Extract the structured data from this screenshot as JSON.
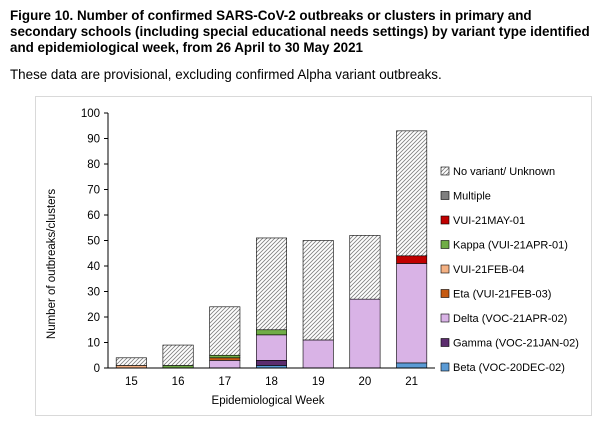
{
  "figure": {
    "title": "Figure 10. Number of confirmed SARS-CoV-2 outbreaks or clusters in primary and secondary schools (including special educational needs settings) by variant type identified and epidemiological week, from 26 April to 30 May 2021",
    "subtitle": "These data are provisional, excluding confirmed Alpha variant outbreaks."
  },
  "chart_data": {
    "type": "bar",
    "stacked": true,
    "title": "",
    "xlabel": "Epidemiological Week",
    "ylabel": "Number of outbreaks/clusters",
    "ylim": [
      0,
      100
    ],
    "yticks": [
      0,
      10,
      20,
      30,
      40,
      50,
      60,
      70,
      80,
      90,
      100
    ],
    "grid": false,
    "legend_position": "right",
    "categories": [
      "15",
      "16",
      "17",
      "18",
      "19",
      "20",
      "21"
    ],
    "series": [
      {
        "name": "Beta (VOC-20DEC-02)",
        "color": "#5b9bd5",
        "pattern": "solid",
        "values": [
          0,
          0,
          0,
          1,
          0,
          0,
          2
        ]
      },
      {
        "name": "Gamma (VOC-21JAN-02)",
        "color": "#5c2d6e",
        "pattern": "solid",
        "values": [
          0,
          0,
          0,
          2,
          0,
          0,
          0
        ]
      },
      {
        "name": "Delta (VOC-21APR-02)",
        "color": "#d9b3e6",
        "pattern": "solid",
        "values": [
          0,
          0,
          3,
          10,
          11,
          27,
          39
        ]
      },
      {
        "name": "Eta (VUI-21FEB-03)",
        "color": "#c55a11",
        "pattern": "solid",
        "values": [
          0,
          0,
          1,
          0,
          0,
          0,
          0
        ]
      },
      {
        "name": "VUI-21FEB-04",
        "color": "#f4b183",
        "pattern": "solid",
        "values": [
          1,
          0,
          0,
          0,
          0,
          0,
          0
        ]
      },
      {
        "name": "Kappa (VUI-21APR-01)",
        "color": "#70ad47",
        "pattern": "solid",
        "values": [
          0,
          1,
          1,
          2,
          0,
          0,
          0
        ]
      },
      {
        "name": "VUI-21MAY-01",
        "color": "#c00000",
        "pattern": "solid",
        "values": [
          0,
          0,
          0,
          0,
          0,
          0,
          3
        ]
      },
      {
        "name": "Multiple",
        "color": "#7f7f7f",
        "pattern": "solid",
        "values": [
          0,
          0,
          0,
          0,
          0,
          0,
          0
        ]
      },
      {
        "name": "No variant/ Unknown",
        "color": "#ffffff",
        "pattern": "hatch",
        "values": [
          3,
          8,
          19,
          36,
          39,
          25,
          49
        ]
      }
    ],
    "legend_order": [
      "No variant/ Unknown",
      "Multiple",
      "VUI-21MAY-01",
      "Kappa (VUI-21APR-01)",
      "VUI-21FEB-04",
      "Eta (VUI-21FEB-03)",
      "Delta (VOC-21APR-02)",
      "Gamma (VOC-21JAN-02)",
      "Beta (VOC-20DEC-02)"
    ]
  }
}
